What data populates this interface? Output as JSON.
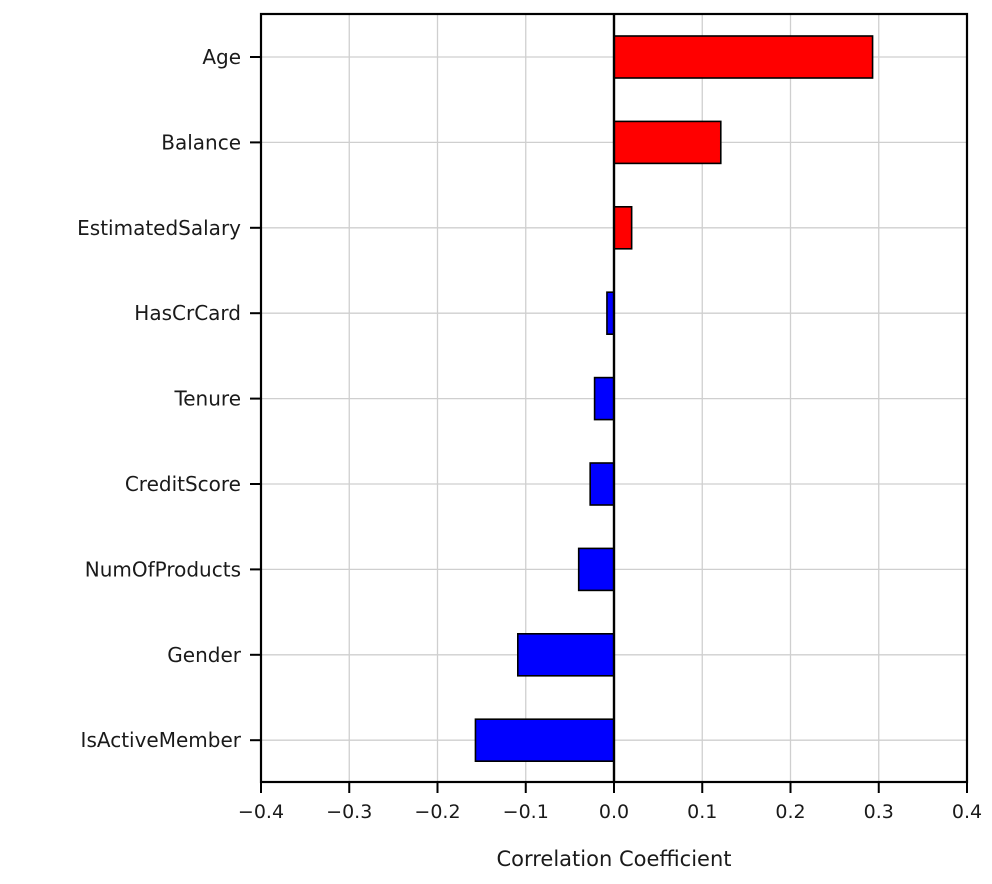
{
  "chart_data": {
    "type": "bar",
    "orientation": "horizontal",
    "title": "",
    "xlabel": "Correlation Coefficient",
    "ylabel": "",
    "xlim": [
      -0.4,
      0.4
    ],
    "xticks": [
      -0.4,
      -0.3,
      -0.2,
      -0.1,
      0.0,
      0.1,
      0.2,
      0.3,
      0.4
    ],
    "xtick_labels": [
      "−0.4",
      "−0.3",
      "−0.2",
      "−0.1",
      "0.0",
      "0.1",
      "0.2",
      "0.3",
      "0.4"
    ],
    "grid": true,
    "categories": [
      "Age",
      "Balance",
      "EstimatedSalary",
      "HasCrCard",
      "Tenure",
      "CreditScore",
      "NumOfProducts",
      "Gender",
      "IsActiveMember"
    ],
    "values": [
      0.293,
      0.121,
      0.02,
      -0.008,
      -0.022,
      -0.027,
      -0.04,
      -0.109,
      -0.157
    ],
    "colors": {
      "positive": "#ff0000",
      "negative": "#0000ff",
      "edge": "#000000",
      "grid": "#cfcfcf"
    }
  }
}
